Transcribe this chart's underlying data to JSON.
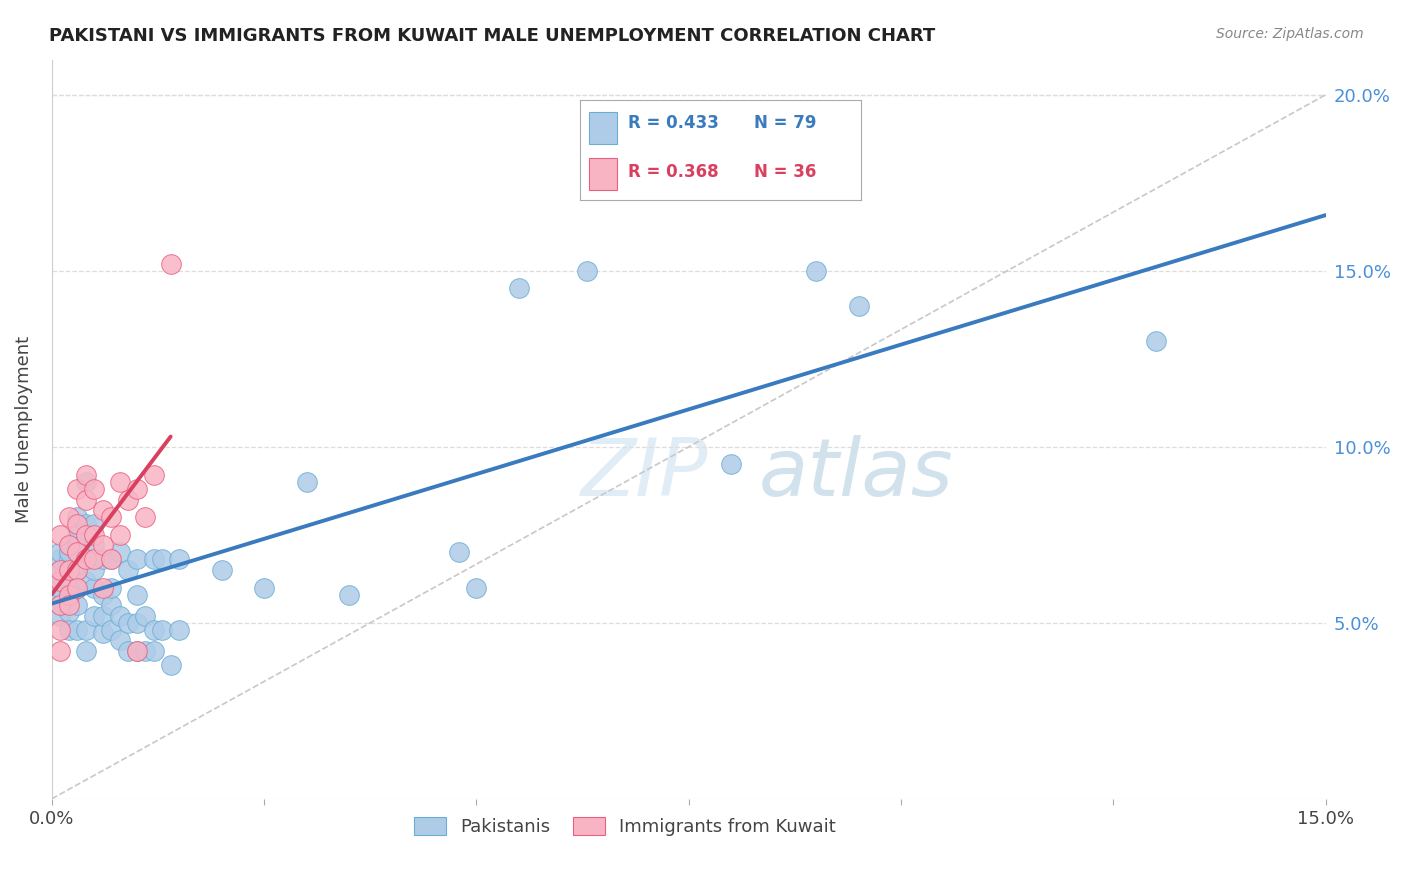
{
  "title": "PAKISTANI VS IMMIGRANTS FROM KUWAIT MALE UNEMPLOYMENT CORRELATION CHART",
  "source": "Source: ZipAtlas.com",
  "ylabel": "Male Unemployment",
  "xlim": [
    0.0,
    0.15
  ],
  "ylim": [
    0.0,
    0.21
  ],
  "xticks": [
    0.0,
    0.025,
    0.05,
    0.075,
    0.1,
    0.125,
    0.15
  ],
  "yticks": [
    0.0,
    0.05,
    0.1,
    0.15,
    0.2
  ],
  "ytick_labels_right": [
    "",
    "5.0%",
    "10.0%",
    "15.0%",
    "20.0%"
  ],
  "xtick_labels": [
    "0.0%",
    "",
    "",
    "",
    "",
    "",
    "15.0%"
  ],
  "blue_color": "#aecce8",
  "blue_edge": "#6aaed6",
  "pink_color": "#f9b4c4",
  "pink_edge": "#e86080",
  "blue_line_color": "#3a7bbf",
  "pink_line_color": "#d94060",
  "diagonal_color": "#c8c8c8",
  "watermark_color": "#d5e8f5",
  "pak_x": [
    0.001,
    0.001,
    0.001,
    0.001,
    0.001,
    0.001,
    0.001,
    0.001,
    0.002,
    0.002,
    0.002,
    0.002,
    0.002,
    0.002,
    0.002,
    0.002,
    0.002,
    0.003,
    0.003,
    0.003,
    0.003,
    0.003,
    0.003,
    0.003,
    0.003,
    0.003,
    0.004,
    0.004,
    0.004,
    0.004,
    0.004,
    0.004,
    0.005,
    0.005,
    0.005,
    0.005,
    0.005,
    0.006,
    0.006,
    0.006,
    0.006,
    0.007,
    0.007,
    0.007,
    0.007,
    0.008,
    0.008,
    0.008,
    0.009,
    0.009,
    0.009,
    0.01,
    0.01,
    0.01,
    0.01,
    0.011,
    0.011,
    0.012,
    0.012,
    0.012,
    0.013,
    0.013,
    0.014,
    0.015,
    0.015,
    0.02,
    0.025,
    0.03,
    0.035,
    0.048,
    0.05,
    0.055,
    0.063,
    0.08,
    0.09,
    0.095,
    0.13
  ],
  "pak_y": [
    0.062,
    0.065,
    0.068,
    0.058,
    0.055,
    0.07,
    0.06,
    0.052,
    0.065,
    0.068,
    0.072,
    0.058,
    0.053,
    0.048,
    0.062,
    0.07,
    0.056,
    0.07,
    0.073,
    0.065,
    0.06,
    0.055,
    0.048,
    0.075,
    0.08,
    0.06,
    0.042,
    0.048,
    0.068,
    0.078,
    0.09,
    0.062,
    0.052,
    0.06,
    0.065,
    0.072,
    0.078,
    0.047,
    0.052,
    0.058,
    0.068,
    0.048,
    0.055,
    0.06,
    0.068,
    0.045,
    0.052,
    0.07,
    0.042,
    0.05,
    0.065,
    0.042,
    0.05,
    0.058,
    0.068,
    0.042,
    0.052,
    0.042,
    0.048,
    0.068,
    0.048,
    0.068,
    0.038,
    0.048,
    0.068,
    0.065,
    0.06,
    0.09,
    0.058,
    0.07,
    0.06,
    0.145,
    0.15,
    0.095,
    0.15,
    0.14,
    0.13
  ],
  "kuw_x": [
    0.001,
    0.001,
    0.001,
    0.001,
    0.001,
    0.001,
    0.002,
    0.002,
    0.002,
    0.002,
    0.002,
    0.003,
    0.003,
    0.003,
    0.003,
    0.003,
    0.004,
    0.004,
    0.004,
    0.004,
    0.005,
    0.005,
    0.005,
    0.006,
    0.006,
    0.006,
    0.007,
    0.007,
    0.008,
    0.008,
    0.009,
    0.01,
    0.01,
    0.011,
    0.012,
    0.014
  ],
  "kuw_y": [
    0.062,
    0.065,
    0.055,
    0.048,
    0.075,
    0.042,
    0.058,
    0.065,
    0.055,
    0.072,
    0.08,
    0.065,
    0.07,
    0.078,
    0.088,
    0.06,
    0.068,
    0.075,
    0.085,
    0.092,
    0.068,
    0.075,
    0.088,
    0.072,
    0.082,
    0.06,
    0.068,
    0.08,
    0.075,
    0.09,
    0.085,
    0.088,
    0.042,
    0.08,
    0.092,
    0.152
  ]
}
